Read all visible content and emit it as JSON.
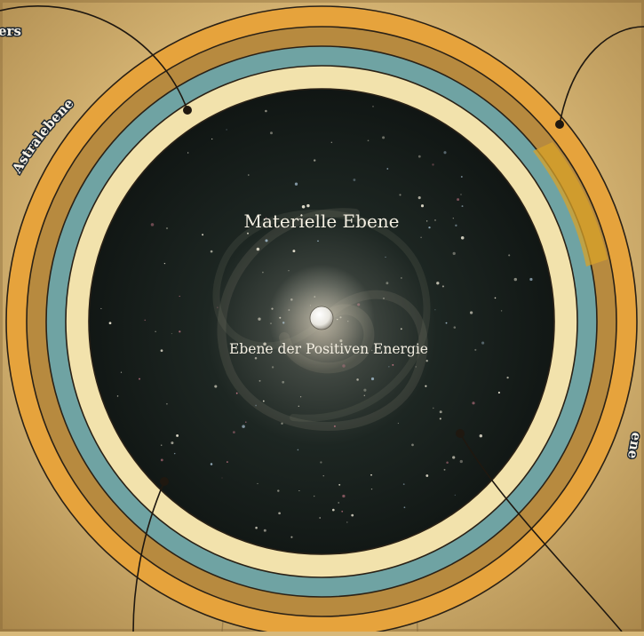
{
  "labels": {
    "material_plane": "Materielle Ebene",
    "positive_energy_plane": "Ebene der Positiven Energie",
    "astral_plane": "Astralebene",
    "top_left_fragment": "ers",
    "right_edge_fragment": "ene"
  },
  "colors": {
    "parchment": "#d9bb7c",
    "parchment_dark": "#a98a4c",
    "ring_gold": "#e6a33c",
    "ring_bronze": "#b78a3f",
    "ring_teal": "#6fa3a3",
    "ring_cream": "#f2e2ac",
    "space": "#141816",
    "line": "#2a2116",
    "label_text": "#f4efe2",
    "edge_text": "#1e2730"
  }
}
